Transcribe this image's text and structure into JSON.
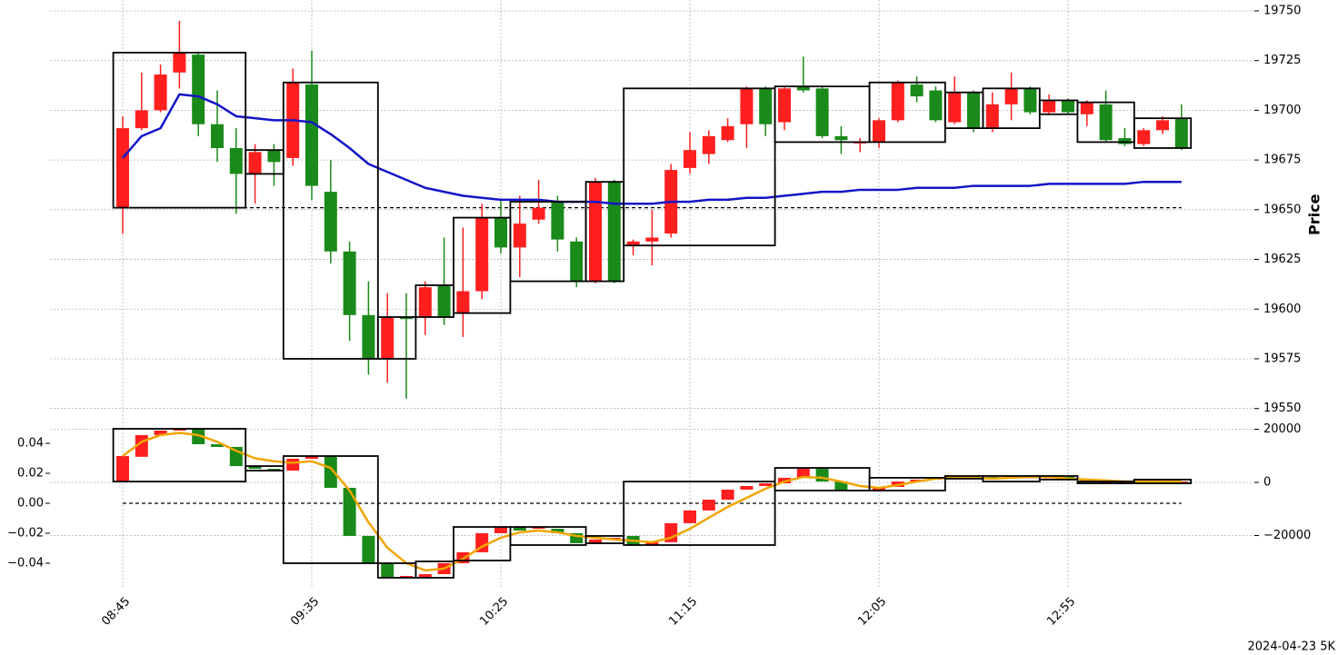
{
  "chart_data": [
    {
      "type": "candlestick",
      "axis_label": "Price",
      "categories": [
        "08:45",
        null,
        null,
        null,
        null,
        null,
        null,
        null,
        null,
        null,
        "09:35",
        null,
        null,
        null,
        null,
        null,
        null,
        null,
        null,
        null,
        "10:25",
        null,
        null,
        null,
        null,
        null,
        null,
        null,
        null,
        null,
        "11:15",
        null,
        null,
        null,
        null,
        null,
        null,
        null,
        null,
        null,
        "12:05",
        null,
        null,
        null,
        null,
        null,
        null,
        null,
        null,
        null,
        "12:55",
        null,
        null,
        null,
        null,
        null,
        null
      ],
      "open": [
        19651,
        19691,
        19700,
        19719,
        19728,
        19693,
        19681,
        19668,
        19680,
        19676,
        19713,
        19659,
        19629,
        19597,
        19575,
        19596,
        19596,
        19612,
        19598,
        19609,
        19646,
        19631,
        19645,
        19654,
        19634,
        19614,
        19664,
        19632,
        19634,
        19638,
        19671,
        19678,
        19685,
        19693,
        19711,
        19694,
        19712,
        19711,
        19687,
        19684,
        19684,
        19695,
        19713,
        19710,
        19694,
        19709,
        19691,
        19703,
        19711,
        19699,
        19705,
        19698,
        19703,
        19686,
        19683,
        19690,
        19696
      ],
      "high": [
        19697,
        19719,
        19723,
        19745,
        19729,
        19710,
        19691,
        19683,
        19683,
        19721,
        19730,
        19675,
        19634,
        19614,
        19608,
        19608,
        19614,
        19636,
        19641,
        19653,
        19655,
        19657,
        19665,
        19657,
        19636,
        19666,
        19665,
        19635,
        19650,
        19673,
        19689,
        19690,
        19696,
        19712,
        19712,
        19712,
        19727,
        19712,
        19692,
        19686,
        19696,
        19715,
        19717,
        19712,
        19717,
        19710,
        19709,
        19719,
        19712,
        19708,
        19706,
        19705,
        19710,
        19691,
        19691,
        19697,
        19703
      ],
      "low": [
        19638,
        19690,
        19699,
        19711,
        19687,
        19674,
        19648,
        19653,
        19662,
        19672,
        19655,
        19623,
        19584,
        19567,
        19563,
        19555,
        19587,
        19592,
        19586,
        19605,
        19628,
        19616,
        19643,
        19629,
        19611,
        19613,
        19613,
        19627,
        19622,
        19636,
        19668,
        19673,
        19684,
        19681,
        19687,
        19690,
        19709,
        19686,
        19678,
        19679,
        19681,
        19694,
        19704,
        19694,
        19693,
        19689,
        19689,
        19695,
        19698,
        19698,
        19698,
        19692,
        19684,
        19682,
        19682,
        19688,
        19680
      ],
      "close": [
        19691,
        19700,
        19718,
        19729,
        19693,
        19681,
        19668,
        19679,
        19674,
        19714,
        19662,
        19629,
        19597,
        19575,
        19596,
        19595,
        19611,
        19596,
        19609,
        19646,
        19631,
        19643,
        19651,
        19635,
        19614,
        19664,
        19614,
        19634,
        19636,
        19670,
        19680,
        19687,
        19692,
        19711,
        19693,
        19711,
        19710,
        19687,
        19685,
        19684,
        19695,
        19714,
        19707,
        19695,
        19709,
        19691,
        19703,
        19711,
        19699,
        19705,
        19699,
        19704,
        19685,
        19683,
        19690,
        19695,
        19681
      ],
      "up_color": "#ff1f1f",
      "down_color": "#1a8a1a",
      "line": {
        "color": "#1414c8",
        "values": [
          19676,
          19687,
          19691,
          19708,
          19707,
          19703,
          19697,
          19696,
          19695,
          19695,
          19694,
          19688,
          19681,
          19673,
          19669,
          19665,
          19661,
          19659,
          19657,
          19656,
          19655,
          19655,
          19655,
          19654,
          19654,
          19654,
          19653,
          19653,
          19653,
          19654,
          19654,
          19655,
          19655,
          19656,
          19656,
          19657,
          19658,
          19659,
          19659,
          19660,
          19660,
          19660,
          19661,
          19661,
          19661,
          19662,
          19662,
          19662,
          19662,
          19663,
          19663,
          19663,
          19663,
          19663,
          19664,
          19664,
          19664
        ]
      },
      "hline": 19651,
      "boxes": [
        {
          "from": 0,
          "to": 6,
          "top": 19729,
          "bottom": 19651
        },
        {
          "from": 7,
          "to": 8,
          "top": 19680,
          "bottom": 19668
        },
        {
          "from": 9,
          "to": 13,
          "top": 19714,
          "bottom": 19575
        },
        {
          "from": 14,
          "to": 15,
          "top": 19596,
          "bottom": 19575
        },
        {
          "from": 16,
          "to": 17,
          "top": 19612,
          "bottom": 19596
        },
        {
          "from": 18,
          "to": 20,
          "top": 19646,
          "bottom": 19598
        },
        {
          "from": 21,
          "to": 24,
          "top": 19654,
          "bottom": 19614
        },
        {
          "from": 25,
          "to": 26,
          "top": 19664,
          "bottom": 19614
        },
        {
          "from": 27,
          "to": 34,
          "top": 19711,
          "bottom": 19632
        },
        {
          "from": 35,
          "to": 39,
          "top": 19712,
          "bottom": 19684
        },
        {
          "from": 40,
          "to": 43,
          "top": 19714,
          "bottom": 19684
        },
        {
          "from": 44,
          "to": 45,
          "top": 19709,
          "bottom": 19691
        },
        {
          "from": 46,
          "to": 48,
          "top": 19711,
          "bottom": 19691
        },
        {
          "from": 49,
          "to": 50,
          "top": 19705,
          "bottom": 19698
        },
        {
          "from": 51,
          "to": 53,
          "top": 19704,
          "bottom": 19684
        },
        {
          "from": 54,
          "to": 56,
          "top": 19696,
          "bottom": 19681
        }
      ],
      "ylim": [
        19543,
        19752
      ],
      "yticks": [
        19550,
        19575,
        19600,
        19625,
        19650,
        19675,
        19700,
        19725,
        19750
      ],
      "grid": true
    },
    {
      "type": "candlestick",
      "open": [
        0.0145,
        0.031,
        0.0455,
        0.0485,
        0.0497,
        0.0394,
        0.0376,
        0.0248,
        0.023,
        0.0218,
        0.0297,
        0.0315,
        0.0103,
        -0.0218,
        -0.04,
        -0.0497,
        -0.0497,
        -0.0473,
        -0.04,
        -0.0327,
        -0.02,
        -0.0158,
        -0.017,
        -0.017,
        -0.02,
        -0.0267,
        -0.0242,
        -0.0218,
        -0.0279,
        -0.026,
        -0.0133,
        -0.0048,
        0.0024,
        0.0091,
        0.0115,
        0.0133,
        0.017,
        0.023,
        0.0145,
        0.0091,
        0.0079,
        0.0109,
        0.0145,
        0.0158,
        0.017,
        0.0182,
        0.0176,
        0.017,
        0.0176,
        0.0176,
        0.0176,
        0.0145,
        0.0139,
        0.0139,
        0.0139,
        0.0139,
        0.0139
      ],
      "close": [
        0.0315,
        0.0455,
        0.0485,
        0.0497,
        0.0394,
        0.0376,
        0.0248,
        0.023,
        0.0218,
        0.0297,
        0.0315,
        0.0103,
        -0.0218,
        -0.04,
        -0.0497,
        -0.0485,
        -0.0473,
        -0.04,
        -0.0327,
        -0.02,
        -0.0158,
        -0.0182,
        -0.0158,
        -0.02,
        -0.0267,
        -0.0242,
        -0.023,
        -0.0279,
        -0.026,
        -0.0133,
        -0.0048,
        0.0024,
        0.0091,
        0.0115,
        0.0133,
        0.017,
        0.023,
        0.0145,
        0.0091,
        0.0079,
        0.0109,
        0.0145,
        0.0158,
        0.017,
        0.0182,
        0.0176,
        0.017,
        0.0176,
        0.0176,
        0.0176,
        0.0158,
        0.0152,
        0.0145,
        0.0145,
        0.0145,
        0.0145,
        0.0145
      ],
      "up_color": "#ff1f1f",
      "down_color": "#1a8a1a",
      "line": {
        "color": "#f0a500",
        "values": [
          0.0315,
          0.041,
          0.0455,
          0.047,
          0.0455,
          0.041,
          0.035,
          0.03,
          0.028,
          0.027,
          0.028,
          0.0236,
          0.0085,
          -0.0127,
          -0.0297,
          -0.04,
          -0.0448,
          -0.0436,
          -0.037,
          -0.029,
          -0.023,
          -0.0194,
          -0.0182,
          -0.0194,
          -0.0218,
          -0.023,
          -0.0242,
          -0.025,
          -0.026,
          -0.023,
          -0.017,
          -0.0097,
          -0.0024,
          0.0036,
          0.0097,
          0.0145,
          0.0176,
          0.017,
          0.0145,
          0.0115,
          0.0103,
          0.0121,
          0.0145,
          0.0164,
          0.0176,
          0.017,
          0.0164,
          0.017,
          0.0176,
          0.0176,
          0.0164,
          0.0158,
          0.0152,
          0.0145,
          0.0145,
          0.0145,
          0.0145
        ]
      },
      "hline": 0,
      "boxes": [
        {
          "from": 0,
          "to": 6,
          "top": 0.0497,
          "bottom": 0.0145
        },
        {
          "from": 7,
          "to": 8,
          "top": 0.0248,
          "bottom": 0.0218
        },
        {
          "from": 9,
          "to": 13,
          "top": 0.0315,
          "bottom": -0.04
        },
        {
          "from": 14,
          "to": 15,
          "top": -0.04,
          "bottom": -0.0497
        },
        {
          "from": 16,
          "to": 17,
          "top": -0.0388,
          "bottom": -0.0497
        },
        {
          "from": 18,
          "to": 20,
          "top": -0.0158,
          "bottom": -0.0382
        },
        {
          "from": 21,
          "to": 24,
          "top": -0.0158,
          "bottom": -0.0279
        },
        {
          "from": 25,
          "to": 26,
          "top": -0.0218,
          "bottom": -0.0267
        },
        {
          "from": 27,
          "to": 34,
          "top": 0.0145,
          "bottom": -0.0279
        },
        {
          "from": 35,
          "to": 39,
          "top": 0.0236,
          "bottom": 0.0085
        },
        {
          "from": 40,
          "to": 43,
          "top": 0.017,
          "bottom": 0.0085
        },
        {
          "from": 44,
          "to": 45,
          "top": 0.0182,
          "bottom": 0.0164
        },
        {
          "from": 46,
          "to": 48,
          "top": 0.0182,
          "bottom": 0.0145
        },
        {
          "from": 49,
          "to": 50,
          "top": 0.0182,
          "bottom": 0.0158
        },
        {
          "from": 51,
          "to": 53,
          "top": 0.0145,
          "bottom": 0.0133
        },
        {
          "from": 54,
          "to": 56,
          "top": 0.0158,
          "bottom": 0.0133
        }
      ],
      "ylim": [
        -0.057,
        0.05
      ],
      "yticks": [
        {
          "value": -0.04,
          "label": "−0.04"
        },
        {
          "value": -0.02,
          "label": "−0.02"
        },
        {
          "value": 0,
          "label": "0.00"
        },
        0.02,
        0.04
      ],
      "y2lim": [
        -40000,
        20340
      ],
      "y2ticks": [
        {
          "value": -20000,
          "label": "−20000"
        },
        0,
        20000
      ],
      "grid": true
    }
  ],
  "footer": "2024-04-23 5K"
}
